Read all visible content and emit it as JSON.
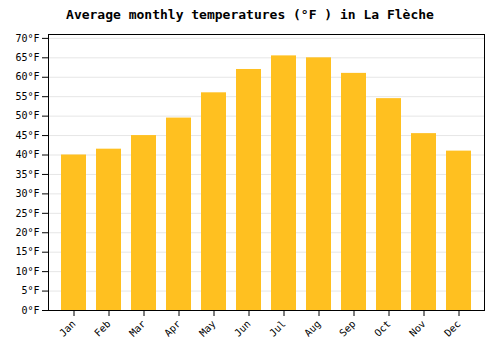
{
  "chart_data": {
    "type": "bar",
    "title": "Average monthly temperatures (°F ) in La Flèche",
    "categories": [
      "Jan",
      "Feb",
      "Mar",
      "Apr",
      "May",
      "Jun",
      "Jul",
      "Aug",
      "Sep",
      "Oct",
      "Nov",
      "Dec"
    ],
    "values": [
      40,
      41.5,
      45,
      49.5,
      56,
      62,
      65.5,
      65,
      61,
      54.5,
      45.5,
      41
    ],
    "color": "#FFC020",
    "ylim": [
      0,
      71
    ],
    "yticks": [
      {
        "value": 0,
        "label": "0°F"
      },
      {
        "value": 5,
        "label": "5°F"
      },
      {
        "value": 10,
        "label": "10°F"
      },
      {
        "value": 15,
        "label": "15°F"
      },
      {
        "value": 20,
        "label": "20°F"
      },
      {
        "value": 25,
        "label": "25°F"
      },
      {
        "value": 30,
        "label": "30°F"
      },
      {
        "value": 35,
        "label": "35°F"
      },
      {
        "value": 40,
        "label": "40°F"
      },
      {
        "value": 45,
        "label": "45°F"
      },
      {
        "value": 50,
        "label": "50°F"
      },
      {
        "value": 55,
        "label": "55°F"
      },
      {
        "value": 60,
        "label": "60°F"
      },
      {
        "value": 65,
        "label": "65°F"
      },
      {
        "value": 70,
        "label": "70°F"
      }
    ],
    "grid": true
  }
}
